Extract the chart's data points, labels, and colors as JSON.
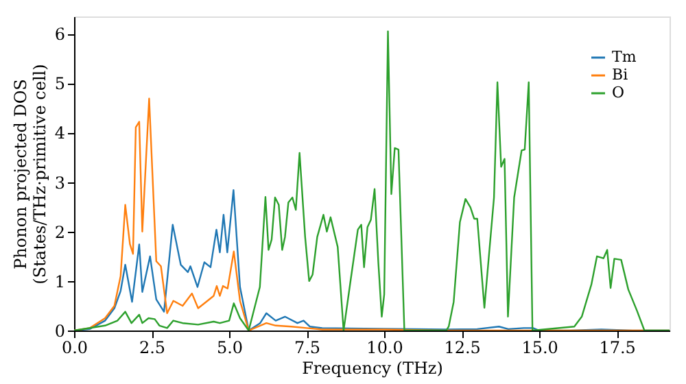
{
  "chart_data": {
    "type": "line",
    "xlabel": "Frequency (THz)",
    "ylabel": "Phonon projected DOS\n(States/THz·primitive cell)",
    "xlim": [
      0,
      19.2
    ],
    "ylim": [
      0,
      6.35
    ],
    "xticks": [
      {
        "value": 0,
        "label": "0.0"
      },
      2.5,
      {
        "value": 5,
        "label": "5.0"
      },
      7.5,
      {
        "value": 10,
        "label": "10.0"
      },
      12.5,
      {
        "value": 15,
        "label": "15.0"
      },
      17.5
    ],
    "yticks": [
      0,
      1,
      2,
      3,
      4,
      5,
      6
    ],
    "grid": false,
    "legend": "top right",
    "line_style": "solid",
    "marker": "none",
    "series": [
      {
        "name": "Tm",
        "color": "#1f77b4",
        "x": [
          0,
          0.5,
          1.0,
          1.3,
          1.5,
          1.65,
          1.87,
          2.1,
          2.2,
          2.45,
          2.65,
          2.9,
          3.18,
          3.44,
          3.67,
          3.75,
          3.98,
          4.2,
          4.4,
          4.59,
          4.7,
          4.82,
          4.94,
          5.14,
          5.35,
          5.63,
          6.0,
          6.2,
          6.5,
          6.8,
          7.2,
          7.4,
          7.6,
          8.0,
          12.0,
          13.0,
          13.7,
          14.0,
          14.5,
          14.8,
          15.0,
          16.0,
          17.0,
          18.0,
          19.2
        ],
        "values": [
          0,
          0.03,
          0.2,
          0.45,
          0.8,
          1.33,
          0.58,
          1.74,
          0.78,
          1.5,
          0.63,
          0.38,
          2.14,
          1.33,
          1.18,
          1.3,
          0.88,
          1.38,
          1.28,
          2.04,
          1.58,
          2.34,
          1.58,
          2.84,
          0.88,
          0,
          0.15,
          0.35,
          0.2,
          0.28,
          0.15,
          0.2,
          0.08,
          0.05,
          0.02,
          0.03,
          0.08,
          0.03,
          0.05,
          0.05,
          0,
          0,
          0.02,
          0,
          0
        ]
      },
      {
        "name": "Bi",
        "color": "#ff7f0e",
        "x": [
          0,
          0.5,
          1.0,
          1.3,
          1.5,
          1.65,
          1.8,
          1.9,
          1.99,
          2.1,
          2.2,
          2.42,
          2.65,
          2.8,
          3.0,
          3.2,
          3.5,
          3.8,
          4.0,
          4.3,
          4.5,
          4.6,
          4.7,
          4.8,
          4.95,
          5.15,
          5.35,
          5.63,
          6.2,
          6.5,
          7.0,
          7.5,
          8.0,
          10.0,
          12.0,
          19.2
        ],
        "values": [
          0,
          0.05,
          0.25,
          0.5,
          1.1,
          2.54,
          1.75,
          1.55,
          4.11,
          4.22,
          2.0,
          4.69,
          1.4,
          1.3,
          0.35,
          0.6,
          0.5,
          0.75,
          0.45,
          0.6,
          0.7,
          0.9,
          0.7,
          0.9,
          0.85,
          1.6,
          0.6,
          0,
          0.15,
          0.1,
          0.08,
          0.05,
          0.02,
          0.02,
          0,
          0
        ]
      },
      {
        "name": "O",
        "color": "#2ca02c",
        "x": [
          0,
          1.0,
          1.4,
          1.65,
          1.85,
          2.1,
          2.2,
          2.4,
          2.6,
          2.75,
          3.0,
          3.2,
          3.5,
          4.0,
          4.5,
          4.7,
          5.0,
          5.15,
          5.35,
          5.63,
          5.99,
          6.17,
          6.27,
          6.37,
          6.48,
          6.6,
          6.71,
          6.8,
          6.91,
          7.04,
          7.15,
          7.27,
          7.45,
          7.58,
          7.69,
          7.84,
          8.04,
          8.15,
          8.27,
          8.5,
          8.69,
          8.92,
          9.15,
          9.26,
          9.35,
          9.46,
          9.57,
          9.69,
          9.81,
          9.92,
          10.0,
          10.12,
          10.23,
          10.34,
          10.46,
          10.65,
          12.0,
          12.08,
          12.24,
          12.44,
          12.62,
          12.78,
          12.9,
          13.0,
          13.23,
          13.54,
          13.65,
          13.77,
          13.88,
          13.99,
          14.19,
          14.43,
          14.53,
          14.66,
          14.78,
          16.13,
          16.37,
          16.68,
          16.86,
          17.07,
          17.19,
          17.3,
          17.42,
          17.64,
          17.87,
          18.15,
          18.39,
          19.2
        ],
        "values": [
          0,
          0.1,
          0.2,
          0.38,
          0.15,
          0.32,
          0.15,
          0.25,
          0.23,
          0.1,
          0.05,
          0.2,
          0.15,
          0.12,
          0.18,
          0.15,
          0.2,
          0.55,
          0.25,
          0,
          0.88,
          2.7,
          1.63,
          1.84,
          2.69,
          2.54,
          1.63,
          1.89,
          2.59,
          2.69,
          2.44,
          3.59,
          1.89,
          1.0,
          1.13,
          1.89,
          2.34,
          2.0,
          2.29,
          1.69,
          0,
          1.03,
          2.04,
          2.14,
          1.28,
          2.09,
          2.24,
          2.86,
          1.38,
          0.28,
          0.73,
          6.05,
          2.76,
          3.69,
          3.66,
          0,
          0,
          0.08,
          0.58,
          2.19,
          2.66,
          2.49,
          2.26,
          2.26,
          0.46,
          2.69,
          5.02,
          3.31,
          3.47,
          0.28,
          2.69,
          3.64,
          3.66,
          5.02,
          0,
          0.08,
          0.28,
          0.93,
          1.5,
          1.46,
          1.63,
          0.86,
          1.45,
          1.43,
          0.83,
          0.4,
          0,
          0
        ]
      }
    ]
  }
}
